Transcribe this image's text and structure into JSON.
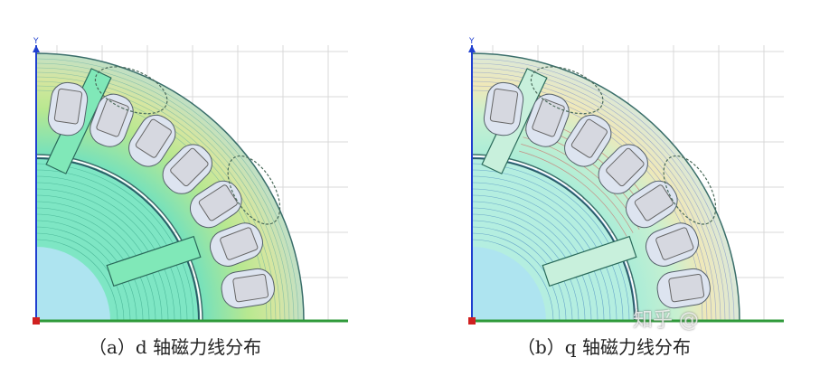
{
  "panels": [
    {
      "id": "a",
      "caption": "（a）d 轴磁力线分布",
      "axis_y_label": "Y",
      "field": "d"
    },
    {
      "id": "b",
      "caption": "（b）q 轴磁力线分布",
      "axis_y_label": "Y",
      "field": "q"
    }
  ],
  "watermark": "知乎 @",
  "colors": {
    "grid": "#d8d8d8",
    "stator_outline": "#3a6e6a",
    "axis_y": "#1f3fcf",
    "axis_x": "#2f9a3a",
    "origin": "#d02020",
    "slot_fill": "#d6d8e0",
    "hole_fill": "#aee4f0"
  }
}
